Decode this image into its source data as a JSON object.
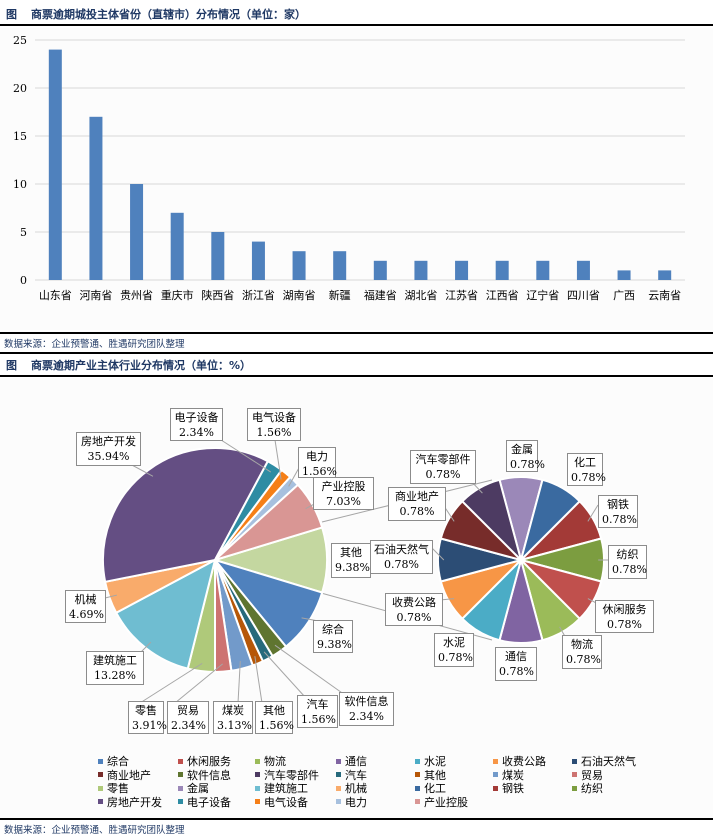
{
  "header1": {
    "fig": "图",
    "title": "商票逾期城投主体省份（直辖市）分布情况（单位：家）"
  },
  "source1": "数据来源：企业预警通、胜遇研究团队整理",
  "header2": {
    "fig": "图",
    "title": "商票逾期产业主体行业分布情况（单位：%）"
  },
  "source2": "数据来源：企业预警通、胜遇研究团队整理",
  "chart_data": [
    {
      "type": "bar",
      "title": "商票逾期城投主体省份（直辖市）分布情况（单位：家）",
      "categories": [
        "山东省",
        "河南省",
        "贵州省",
        "重庆市",
        "陕西省",
        "浙江省",
        "湖南省",
        "新疆",
        "福建省",
        "湖北省",
        "江苏省",
        "江西省",
        "辽宁省",
        "四川省",
        "广西",
        "云南省"
      ],
      "values": [
        24,
        17,
        10,
        7,
        5,
        4,
        3,
        3,
        2,
        2,
        2,
        2,
        2,
        2,
        1,
        1
      ],
      "ylim": [
        0,
        25
      ],
      "yticks": [
        "0",
        "5",
        "10",
        "15",
        "20",
        "25"
      ],
      "grid": true,
      "color": "#4f81bd",
      "xlabel": "",
      "ylabel": ""
    },
    {
      "type": "pie",
      "subtype": "pie-of-pie",
      "title": "商票逾期产业主体行业分布情况（单位：%）",
      "main_slices": [
        {
          "name": "其他",
          "value": 9.38,
          "label": "9.38%",
          "color": "#c4d7a0",
          "aggregate": true
        },
        {
          "name": "综合",
          "value": 9.38,
          "label": "9.38%",
          "color": "#4f81bd"
        },
        {
          "name": "软件信息",
          "value": 2.34,
          "label": "2.34%",
          "color": "#5f7530"
        },
        {
          "name": "汽车",
          "value": 1.56,
          "label": "1.56%",
          "color": "#276a7c"
        },
        {
          "name": "其他",
          "value": 1.56,
          "label": "1.56%",
          "color": "#b65708"
        },
        {
          "name": "煤炭",
          "value": 3.13,
          "label": "3.13%",
          "color": "#729aca"
        },
        {
          "name": "贸易",
          "value": 2.34,
          "label": "2.34%",
          "color": "#cd7371"
        },
        {
          "name": "零售",
          "value": 3.91,
          "label": "3.91%",
          "color": "#afc97a"
        },
        {
          "name": "建筑施工",
          "value": 13.28,
          "label": "13.28%",
          "color": "#6fbdd1"
        },
        {
          "name": "机械",
          "value": 4.69,
          "label": "4.69%",
          "color": "#f9ab6b"
        },
        {
          "name": "房地产开发",
          "value": 35.94,
          "label": "35.94%",
          "color": "#644e83"
        },
        {
          "name": "电子设备",
          "value": 2.34,
          "label": "2.34%",
          "color": "#2e8ca3"
        },
        {
          "name": "电气设备",
          "value": 1.56,
          "label": "1.56%",
          "color": "#f57f17"
        },
        {
          "name": "电力",
          "value": 1.56,
          "label": "1.56%",
          "color": "#a7c0de"
        },
        {
          "name": "产业控股",
          "value": 7.03,
          "label": "7.03%",
          "color": "#d99694"
        }
      ],
      "secondary_slices": [
        {
          "name": "金属",
          "value": 0.78,
          "label": "0.78%",
          "color": "#9b88b8"
        },
        {
          "name": "化工",
          "value": 0.78,
          "label": "0.78%",
          "color": "#3a6aa0"
        },
        {
          "name": "钢铁",
          "value": 0.78,
          "label": "0.78%",
          "color": "#a33a37"
        },
        {
          "name": "纺织",
          "value": 0.78,
          "label": "0.78%",
          "color": "#7c9d40"
        },
        {
          "name": "休闲服务",
          "value": 0.78,
          "label": "0.78%",
          "color": "#c0504d"
        },
        {
          "name": "物流",
          "value": 0.78,
          "label": "0.78%",
          "color": "#9bbb59"
        },
        {
          "name": "通信",
          "value": 0.78,
          "label": "0.78%",
          "color": "#8064a2"
        },
        {
          "name": "水泥",
          "value": 0.78,
          "label": "0.78%",
          "color": "#4bacc6"
        },
        {
          "name": "收费公路",
          "value": 0.78,
          "label": "0.78%",
          "color": "#f79646"
        },
        {
          "name": "石油天然气",
          "value": 0.78,
          "label": "0.78%",
          "color": "#2c4d75"
        },
        {
          "name": "商业地产",
          "value": 0.78,
          "label": "0.78%",
          "color": "#772c2a"
        },
        {
          "name": "汽车零部件",
          "value": 0.78,
          "label": "0.78%",
          "color": "#4d3b62"
        }
      ],
      "legend": [
        {
          "name": "综合",
          "color": "#4f81bd"
        },
        {
          "name": "休闲服务",
          "color": "#c0504d"
        },
        {
          "name": "物流",
          "color": "#9bbb59"
        },
        {
          "name": "通信",
          "color": "#8064a2"
        },
        {
          "name": "水泥",
          "color": "#4bacc6"
        },
        {
          "name": "收费公路",
          "color": "#f79646"
        },
        {
          "name": "石油天然气",
          "color": "#2c4d75"
        },
        {
          "name": "商业地产",
          "color": "#772c2a"
        },
        {
          "name": "软件信息",
          "color": "#5f7530"
        },
        {
          "name": "汽车零部件",
          "color": "#4d3b62"
        },
        {
          "name": "汽车",
          "color": "#276a7c"
        },
        {
          "name": "其他",
          "color": "#b65708"
        },
        {
          "name": "煤炭",
          "color": "#729aca"
        },
        {
          "name": "贸易",
          "color": "#cd7371"
        },
        {
          "name": "零售",
          "color": "#afc97a"
        },
        {
          "name": "金属",
          "color": "#9b88b8"
        },
        {
          "name": "建筑施工",
          "color": "#6fbdd1"
        },
        {
          "name": "机械",
          "color": "#f9ab6b"
        },
        {
          "name": "化工",
          "color": "#3a6aa0"
        },
        {
          "name": "钢铁",
          "color": "#a33a37"
        },
        {
          "name": "纺织",
          "color": "#7c9d40"
        },
        {
          "name": "房地产开发",
          "color": "#644e83"
        },
        {
          "name": "电子设备",
          "color": "#2e8ca3"
        },
        {
          "name": "电气设备",
          "color": "#f57f17"
        },
        {
          "name": "电力",
          "color": "#a7c0de"
        },
        {
          "name": "产业控股",
          "color": "#d99694"
        }
      ],
      "legend_position": "bottom"
    }
  ]
}
